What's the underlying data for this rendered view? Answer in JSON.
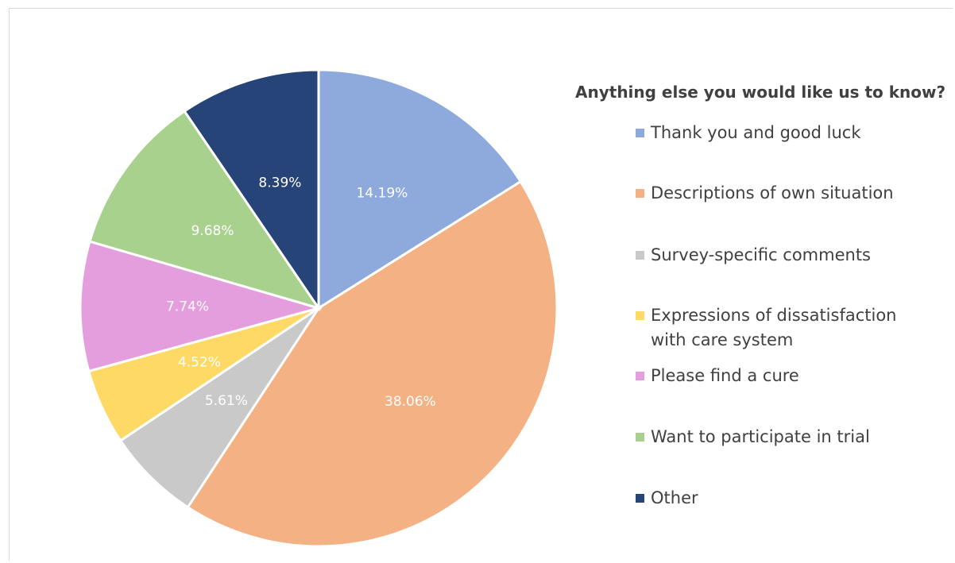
{
  "chart_data": {
    "type": "pie",
    "title": "",
    "legend_title": "Anything else you would like us to know?",
    "legend_position": "right",
    "slices": [
      {
        "label": "Thank you and good luck",
        "value": 14.19,
        "display": "14.19%",
        "color": "#8EA9DB"
      },
      {
        "label": "Descriptions of own situation",
        "value": 38.06,
        "display": "38.06%",
        "color": "#F4B183"
      },
      {
        "label": "Survey-specific comments",
        "value": 5.61,
        "display": "5.61%",
        "color": "#C9C9C9"
      },
      {
        "label": "Expressions of dissatisfaction with care system",
        "value": 4.52,
        "display": "4.52%",
        "color": "#FFD966"
      },
      {
        "label": "Please find a cure",
        "value": 7.74,
        "display": "7.74%",
        "color": "#E59EDD"
      },
      {
        "label": "Want to participate in trial",
        "value": 9.68,
        "display": "9.68%",
        "color": "#A9D18E"
      },
      {
        "label": "Other",
        "value": 8.39,
        "display": "8.39%",
        "color": "#264478"
      }
    ]
  }
}
